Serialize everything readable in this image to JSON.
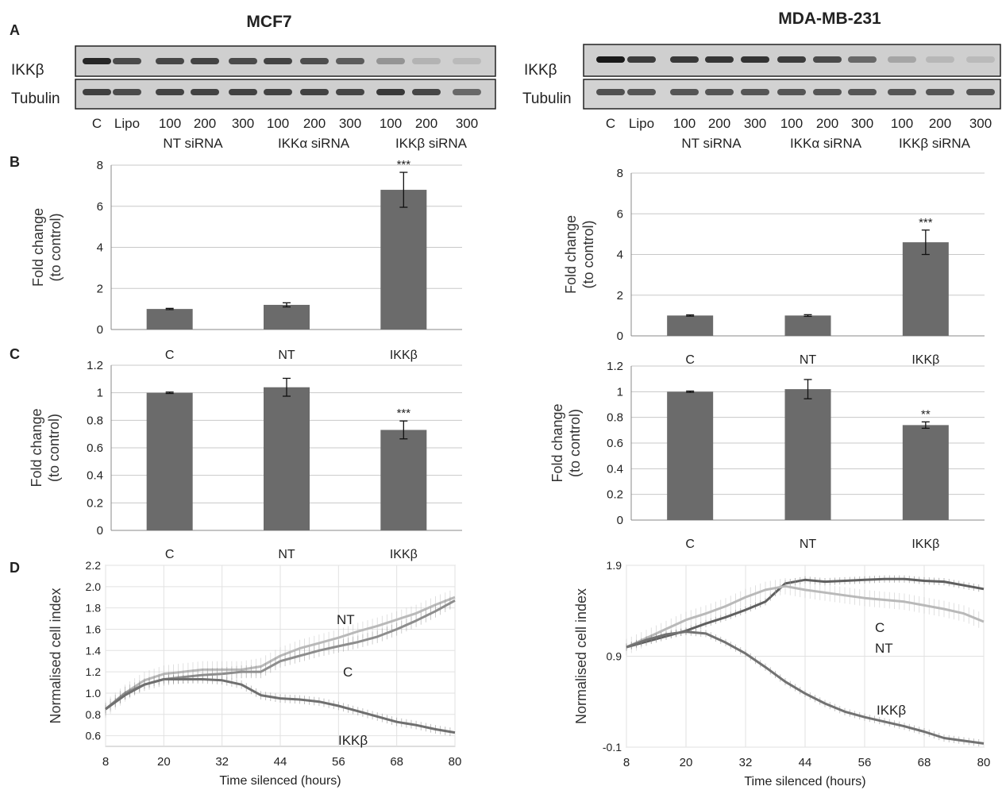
{
  "panel_letters": [
    "A",
    "B",
    "C",
    "D"
  ],
  "columns": [
    {
      "cell_line": "MCF7",
      "blot": {
        "rows": [
          "IKKβ",
          "Tubulin"
        ],
        "lanes": [
          "C",
          "Lipo",
          "100",
          "200",
          "300",
          "100",
          "200",
          "300",
          "100",
          "200",
          "300"
        ],
        "groups": [
          "NT siRNA",
          "IKKα siRNA",
          "IKKβ siRNA"
        ],
        "ikkb_band_intensity": [
          0.92,
          0.72,
          0.74,
          0.76,
          0.72,
          0.76,
          0.7,
          0.62,
          0.3,
          0.12,
          0.08
        ],
        "tubulin_band_intensity": [
          0.85,
          0.78,
          0.84,
          0.84,
          0.84,
          0.84,
          0.84,
          0.82,
          0.9,
          0.82,
          0.6
        ]
      }
    },
    {
      "cell_line": "MDA-MB-231",
      "blot": {
        "rows": [
          "IKKβ",
          "Tubulin"
        ],
        "lanes": [
          "C",
          "Lipo",
          "100",
          "200",
          "300",
          "100",
          "200",
          "300",
          "100",
          "200",
          "300"
        ],
        "groups": [
          "NT siRNA",
          "IKKα siRNA",
          "IKKβ siRNA"
        ],
        "ikkb_band_intensity": [
          1.0,
          0.8,
          0.82,
          0.84,
          0.85,
          0.8,
          0.72,
          0.55,
          0.2,
          0.1,
          0.08
        ],
        "tubulin_band_intensity": [
          0.75,
          0.72,
          0.72,
          0.72,
          0.72,
          0.72,
          0.72,
          0.72,
          0.72,
          0.72,
          0.72
        ]
      }
    }
  ],
  "chart_data": [
    {
      "id": "B-MCF7",
      "type": "bar",
      "categories": [
        "C",
        "NT",
        "IKKβ"
      ],
      "values": [
        1.0,
        1.2,
        6.8
      ],
      "errors": [
        0.03,
        0.1,
        0.85
      ],
      "significance": [
        "",
        "",
        "***"
      ],
      "ylabel_lines": [
        "Fold change",
        "(to control)"
      ],
      "ylim": [
        0,
        8
      ],
      "yticks": [
        "0",
        "2",
        "4",
        "6",
        "8"
      ],
      "grid": true,
      "color": "#6b6b6b"
    },
    {
      "id": "B-MDA",
      "type": "bar",
      "categories": [
        "C",
        "NT",
        "IKKβ"
      ],
      "values": [
        1.0,
        1.0,
        4.6
      ],
      "errors": [
        0.03,
        0.04,
        0.6
      ],
      "significance": [
        "",
        "",
        "***"
      ],
      "ylabel_lines": [
        "Fold change",
        "(to control)"
      ],
      "ylim": [
        0,
        8
      ],
      "yticks": [
        "0",
        "2",
        "4",
        "6",
        "8"
      ],
      "grid": true,
      "color": "#6b6b6b"
    },
    {
      "id": "C-MCF7",
      "type": "bar",
      "categories": [
        "C",
        "NT",
        "IKKβ"
      ],
      "values": [
        1.0,
        1.04,
        0.73
      ],
      "errors": [
        0.005,
        0.065,
        0.065
      ],
      "significance": [
        "",
        "",
        "***"
      ],
      "ylabel_lines": [
        "Fold change",
        "(to control)"
      ],
      "ylim": [
        0,
        1.2
      ],
      "yticks": [
        "0",
        "0.2",
        "0.4",
        "0.6",
        "0.8",
        "1",
        "1.2"
      ],
      "grid": true,
      "color": "#6b6b6b"
    },
    {
      "id": "C-MDA",
      "type": "bar",
      "categories": [
        "C",
        "NT",
        "IKKβ"
      ],
      "values": [
        1.0,
        1.02,
        0.74
      ],
      "errors": [
        0.005,
        0.075,
        0.025
      ],
      "significance": [
        "",
        "",
        "**"
      ],
      "ylabel_lines": [
        "Fold change",
        "(to control)"
      ],
      "ylim": [
        0,
        1.2
      ],
      "yticks": [
        "0",
        "0.2",
        "0.4",
        "0.6",
        "0.8",
        "1",
        "1.2"
      ],
      "grid": true,
      "color": "#6b6b6b"
    },
    {
      "id": "D-MCF7",
      "type": "line",
      "xlabel": "Time silenced (hours)",
      "ylabel": "Normalised cell index",
      "xlim": [
        8,
        80
      ],
      "ylim": [
        0.5,
        2.2
      ],
      "xticks": [
        "8",
        "20",
        "32",
        "44",
        "56",
        "68",
        "80"
      ],
      "yticks": [
        "0.6",
        "0.8",
        "1.0",
        "1.2",
        "1.4",
        "1.6",
        "1.8",
        "2.0",
        "2.2"
      ],
      "series": [
        {
          "name": "NT",
          "color": "#b9b9b9",
          "err": 0.08,
          "points": [
            [
              8,
              0.85
            ],
            [
              12,
              1.0
            ],
            [
              16,
              1.12
            ],
            [
              20,
              1.18
            ],
            [
              24,
              1.2
            ],
            [
              28,
              1.22
            ],
            [
              32,
              1.22
            ],
            [
              36,
              1.22
            ],
            [
              40,
              1.25
            ],
            [
              44,
              1.35
            ],
            [
              48,
              1.42
            ],
            [
              52,
              1.47
            ],
            [
              56,
              1.52
            ],
            [
              60,
              1.58
            ],
            [
              64,
              1.63
            ],
            [
              68,
              1.69
            ],
            [
              72,
              1.75
            ],
            [
              76,
              1.83
            ],
            [
              80,
              1.9
            ]
          ]
        },
        {
          "name": "C",
          "color": "#8d8d8d",
          "err": 0.06,
          "points": [
            [
              8,
              0.85
            ],
            [
              12,
              1.0
            ],
            [
              16,
              1.08
            ],
            [
              20,
              1.13
            ],
            [
              24,
              1.15
            ],
            [
              28,
              1.17
            ],
            [
              32,
              1.18
            ],
            [
              36,
              1.2
            ],
            [
              40,
              1.2
            ],
            [
              44,
              1.3
            ],
            [
              48,
              1.35
            ],
            [
              52,
              1.4
            ],
            [
              56,
              1.44
            ],
            [
              60,
              1.48
            ],
            [
              64,
              1.53
            ],
            [
              68,
              1.6
            ],
            [
              72,
              1.68
            ],
            [
              76,
              1.77
            ],
            [
              80,
              1.87
            ]
          ]
        },
        {
          "name": "IKKβ",
          "color": "#6f6f6f",
          "err": 0.04,
          "points": [
            [
              8,
              0.85
            ],
            [
              12,
              0.98
            ],
            [
              16,
              1.08
            ],
            [
              20,
              1.13
            ],
            [
              24,
              1.13
            ],
            [
              28,
              1.13
            ],
            [
              32,
              1.12
            ],
            [
              36,
              1.08
            ],
            [
              40,
              0.98
            ],
            [
              44,
              0.95
            ],
            [
              48,
              0.94
            ],
            [
              52,
              0.92
            ],
            [
              56,
              0.88
            ],
            [
              60,
              0.83
            ],
            [
              64,
              0.78
            ],
            [
              68,
              0.73
            ],
            [
              72,
              0.7
            ],
            [
              76,
              0.66
            ],
            [
              80,
              0.63
            ]
          ]
        }
      ],
      "labels": [
        "NT",
        "C",
        "IKKβ"
      ]
    },
    {
      "id": "D-MDA",
      "type": "line",
      "xlabel": "Time silenced (hours)",
      "ylabel": "Normalised cell index",
      "xlim": [
        8,
        80
      ],
      "ylim": [
        -0.1,
        1.9
      ],
      "xticks": [
        "8",
        "20",
        "32",
        "44",
        "56",
        "68",
        "80"
      ],
      "yticks": [
        "-0.1",
        "0.9",
        "1.9"
      ],
      "series": [
        {
          "name": "C",
          "color": "#5f5f5f",
          "err": 0.04,
          "points": [
            [
              8,
              1.0
            ],
            [
              12,
              1.06
            ],
            [
              16,
              1.12
            ],
            [
              20,
              1.18
            ],
            [
              24,
              1.26
            ],
            [
              28,
              1.33
            ],
            [
              32,
              1.41
            ],
            [
              36,
              1.5
            ],
            [
              40,
              1.7
            ],
            [
              44,
              1.74
            ],
            [
              48,
              1.72
            ],
            [
              52,
              1.73
            ],
            [
              56,
              1.74
            ],
            [
              60,
              1.75
            ],
            [
              64,
              1.75
            ],
            [
              68,
              1.73
            ],
            [
              72,
              1.72
            ],
            [
              76,
              1.68
            ],
            [
              80,
              1.64
            ]
          ]
        },
        {
          "name": "NT",
          "color": "#b9b9b9",
          "err": 0.09,
          "points": [
            [
              8,
              1.0
            ],
            [
              12,
              1.1
            ],
            [
              16,
              1.2
            ],
            [
              20,
              1.3
            ],
            [
              24,
              1.37
            ],
            [
              28,
              1.45
            ],
            [
              32,
              1.55
            ],
            [
              36,
              1.63
            ],
            [
              40,
              1.67
            ],
            [
              44,
              1.63
            ],
            [
              48,
              1.6
            ],
            [
              52,
              1.57
            ],
            [
              56,
              1.54
            ],
            [
              60,
              1.52
            ],
            [
              64,
              1.5
            ],
            [
              68,
              1.46
            ],
            [
              72,
              1.42
            ],
            [
              76,
              1.37
            ],
            [
              80,
              1.28
            ]
          ]
        },
        {
          "name": "IKKβ",
          "color": "#727272",
          "err": 0.04,
          "points": [
            [
              8,
              1.0
            ],
            [
              12,
              1.08
            ],
            [
              16,
              1.14
            ],
            [
              20,
              1.17
            ],
            [
              24,
              1.15
            ],
            [
              28,
              1.05
            ],
            [
              32,
              0.93
            ],
            [
              36,
              0.78
            ],
            [
              40,
              0.62
            ],
            [
              44,
              0.49
            ],
            [
              48,
              0.38
            ],
            [
              52,
              0.29
            ],
            [
              56,
              0.23
            ],
            [
              60,
              0.18
            ],
            [
              64,
              0.13
            ],
            [
              68,
              0.07
            ],
            [
              72,
              0.0
            ],
            [
              76,
              -0.03
            ],
            [
              80,
              -0.06
            ]
          ]
        }
      ],
      "labels": [
        "C",
        "NT",
        "IKKβ"
      ]
    }
  ]
}
